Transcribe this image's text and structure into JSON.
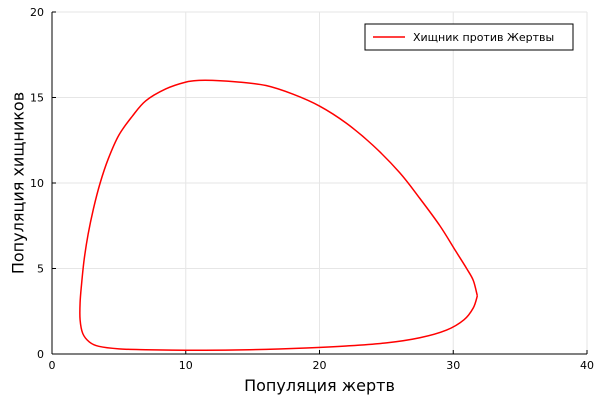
{
  "chart_data": {
    "type": "line",
    "title": "",
    "xlabel": "Популяция жертв",
    "ylabel": "Популяция хищников",
    "xlim": [
      0,
      40
    ],
    "ylim": [
      0,
      20
    ],
    "xticks": [
      0,
      10,
      20,
      30,
      40
    ],
    "yticks": [
      0,
      5,
      10,
      15,
      20
    ],
    "xtick_labels": [
      "0",
      "10",
      "20",
      "30",
      "40"
    ],
    "ytick_labels": [
      "0",
      "5",
      "10",
      "15",
      "20"
    ],
    "grid": true,
    "legend": {
      "position": "top-right",
      "entries": [
        "Хищник против Жертвы"
      ]
    },
    "series": [
      {
        "name": "Хищник против Жертвы",
        "color": "#ff0000",
        "points": [
          [
            31.8,
            3.4
          ],
          [
            31.5,
            4.3
          ],
          [
            31.0,
            5.0
          ],
          [
            30.2,
            6.0
          ],
          [
            29.0,
            7.5
          ],
          [
            27.5,
            9.1
          ],
          [
            26.0,
            10.6
          ],
          [
            24.0,
            12.2
          ],
          [
            22.0,
            13.5
          ],
          [
            20.0,
            14.5
          ],
          [
            18.0,
            15.2
          ],
          [
            16.0,
            15.7
          ],
          [
            14.0,
            15.9
          ],
          [
            12.0,
            16.0
          ],
          [
            11.0,
            16.0
          ],
          [
            10.0,
            15.9
          ],
          [
            8.5,
            15.5
          ],
          [
            7.0,
            14.8
          ],
          [
            6.0,
            13.9
          ],
          [
            5.0,
            12.8
          ],
          [
            4.2,
            11.4
          ],
          [
            3.6,
            10.0
          ],
          [
            3.1,
            8.5
          ],
          [
            2.7,
            7.0
          ],
          [
            2.4,
            5.5
          ],
          [
            2.2,
            4.0
          ],
          [
            2.1,
            3.0
          ],
          [
            2.1,
            2.0
          ],
          [
            2.3,
            1.2
          ],
          [
            2.8,
            0.7
          ],
          [
            3.5,
            0.45
          ],
          [
            5.0,
            0.3
          ],
          [
            7.0,
            0.25
          ],
          [
            10.0,
            0.22
          ],
          [
            13.0,
            0.23
          ],
          [
            16.0,
            0.27
          ],
          [
            19.0,
            0.35
          ],
          [
            22.0,
            0.47
          ],
          [
            25.0,
            0.65
          ],
          [
            27.5,
            0.95
          ],
          [
            29.5,
            1.4
          ],
          [
            30.8,
            2.0
          ],
          [
            31.5,
            2.7
          ],
          [
            31.8,
            3.4
          ]
        ]
      }
    ]
  }
}
